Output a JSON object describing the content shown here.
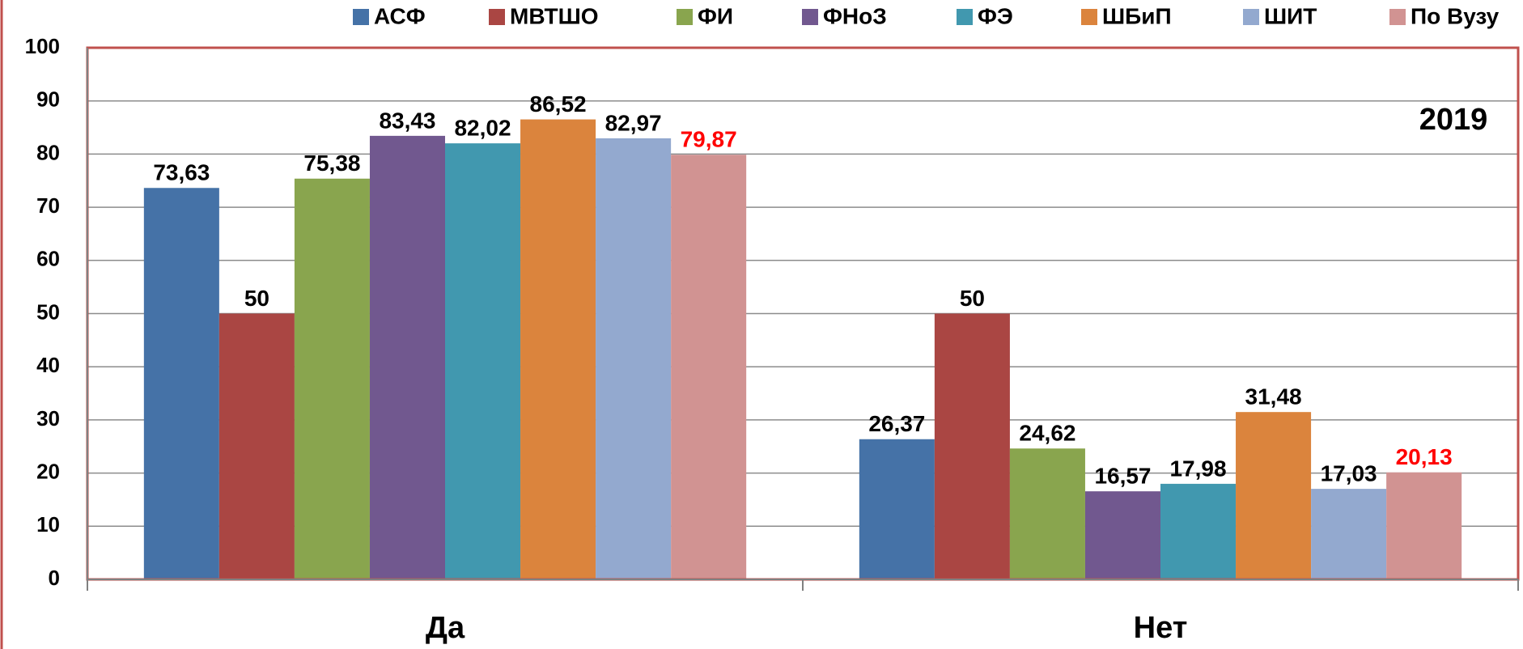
{
  "chart_data": {
    "type": "bar",
    "annotation": "2019",
    "categories": [
      "Да",
      "Нет"
    ],
    "series": [
      {
        "name": "АСФ",
        "color": "#4572a7",
        "values": [
          73.63,
          26.37
        ],
        "value_labels": [
          "73,63",
          "26,37"
        ],
        "label_color": "#000000"
      },
      {
        "name": "МВТШО",
        "color": "#aa4643",
        "values": [
          50,
          50
        ],
        "value_labels": [
          "50",
          "50"
        ],
        "label_color": "#000000"
      },
      {
        "name": "ФИ",
        "color": "#89a54e",
        "values": [
          75.38,
          24.62
        ],
        "value_labels": [
          "75,38",
          "24,62"
        ],
        "label_color": "#000000"
      },
      {
        "name": "ФНоЗ",
        "color": "#71588f",
        "values": [
          83.43,
          16.57
        ],
        "value_labels": [
          "83,43",
          "16,57"
        ],
        "label_color": "#000000"
      },
      {
        "name": "ФЭ",
        "color": "#4198af",
        "values": [
          82.02,
          17.98
        ],
        "value_labels": [
          "82,02",
          "17,98"
        ],
        "label_color": "#000000"
      },
      {
        "name": "ШБиП",
        "color": "#db843d",
        "values": [
          86.52,
          31.48
        ],
        "value_labels": [
          "86,52",
          "31,48"
        ],
        "label_color": "#000000"
      },
      {
        "name": "ШИТ",
        "color": "#93a9cf",
        "values": [
          82.97,
          17.03
        ],
        "value_labels": [
          "82,97",
          "17,03"
        ],
        "label_color": "#000000"
      },
      {
        "name": "По Вузу",
        "color": "#d19392",
        "values": [
          79.87,
          20.13
        ],
        "value_labels": [
          "79,87",
          "20,13"
        ],
        "label_color": "#ff0000"
      }
    ],
    "ylim": [
      0,
      100
    ],
    "yticks": [
      0,
      10,
      20,
      30,
      40,
      50,
      60,
      70,
      80,
      90,
      100
    ],
    "grid": true,
    "legend": "top"
  }
}
